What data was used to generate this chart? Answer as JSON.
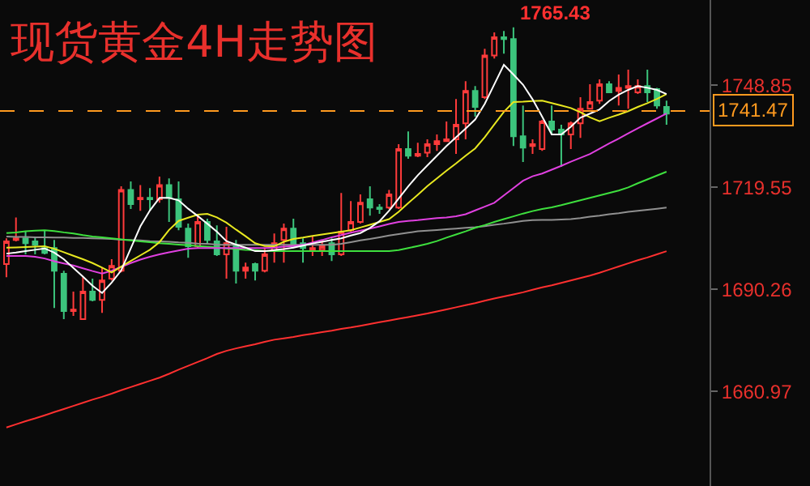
{
  "chart_data": {
    "type": "candlestick",
    "title": "现货黄金4H走势图",
    "categories": [
      null,
      null,
      null,
      null,
      null,
      null,
      null,
      null,
      null,
      null,
      null,
      null,
      null,
      null,
      null,
      null,
      null,
      null,
      null,
      null,
      null,
      null,
      null,
      null,
      null,
      null,
      null,
      null,
      null,
      null,
      null,
      null,
      null,
      null,
      null,
      null,
      null,
      null,
      null,
      null,
      null,
      null,
      null,
      null,
      null,
      null,
      null,
      null,
      null,
      null,
      null,
      null,
      null,
      null,
      null,
      null,
      null,
      null,
      null,
      null,
      null,
      null,
      null,
      null,
      null,
      null,
      null,
      null,
      null,
      null
    ],
    "ohlc": [
      [
        1697.5,
        1704.9,
        1693.7,
        1704.0
      ],
      [
        1704.4,
        1710.9,
        1704.0,
        1704.9
      ],
      [
        1704.9,
        1706.8,
        1700.3,
        1703.5
      ],
      [
        1704.0,
        1705.4,
        1700.3,
        1703.0
      ],
      [
        1702.1,
        1707.2,
        1700.3,
        1700.7
      ],
      [
        1702.1,
        1704.4,
        1684.9,
        1695.6
      ],
      [
        1694.7,
        1695.6,
        1681.7,
        1684.0
      ],
      [
        1684.0,
        1689.6,
        1682.6,
        1684.4
      ],
      [
        1681.7,
        1693.7,
        1681.7,
        1689.6
      ],
      [
        1689.6,
        1693.3,
        1686.8,
        1687.2
      ],
      [
        1687.2,
        1696.5,
        1683.5,
        1692.8
      ],
      [
        1693.3,
        1698.9,
        1692.8,
        1697.0
      ],
      [
        1695.6,
        1719.8,
        1695.1,
        1718.8
      ],
      [
        1718.8,
        1721.2,
        1713.3,
        1714.7
      ],
      [
        1716.1,
        1720.2,
        1712.8,
        1716.5
      ],
      [
        1716.5,
        1719.3,
        1712.8,
        1716.1
      ],
      [
        1716.1,
        1722.6,
        1715.1,
        1720.2
      ],
      [
        1720.2,
        1722.1,
        1709.6,
        1716.5
      ],
      [
        1716.1,
        1721.2,
        1707.2,
        1708.2
      ],
      [
        1707.7,
        1709.1,
        1699.3,
        1702.6
      ],
      [
        1702.6,
        1711.4,
        1702.1,
        1709.6
      ],
      [
        1709.6,
        1710.5,
        1703.5,
        1704.4
      ],
      [
        1704.0,
        1708.6,
        1699.8,
        1700.3
      ],
      [
        1700.3,
        1708.2,
        1693.3,
        1703.5
      ],
      [
        1703.0,
        1704.4,
        1691.9,
        1695.6
      ],
      [
        1695.6,
        1697.9,
        1693.3,
        1696.5
      ],
      [
        1697.5,
        1697.9,
        1692.8,
        1695.6
      ],
      [
        1695.6,
        1702.1,
        1695.1,
        1700.3
      ],
      [
        1701.2,
        1706.3,
        1697.9,
        1703.5
      ],
      [
        1704.4,
        1709.1,
        1697.9,
        1707.7
      ],
      [
        1707.7,
        1710.5,
        1702.1,
        1702.6
      ],
      [
        1703.5,
        1704.9,
        1697.9,
        1702.1
      ],
      [
        1701.2,
        1705.4,
        1699.8,
        1702.1
      ],
      [
        1701.6,
        1704.4,
        1699.8,
        1702.6
      ],
      [
        1703.5,
        1704.9,
        1698.4,
        1700.3
      ],
      [
        1700.3,
        1717.9,
        1699.8,
        1706.8
      ],
      [
        1707.2,
        1715.6,
        1706.8,
        1709.6
      ],
      [
        1709.6,
        1717.5,
        1709.1,
        1715.1
      ],
      [
        1716.1,
        1719.8,
        1711.4,
        1713.7
      ],
      [
        1713.7,
        1714.7,
        1711.9,
        1713.3
      ],
      [
        1713.7,
        1718.8,
        1713.3,
        1717.5
      ],
      [
        1713.7,
        1731.9,
        1713.3,
        1730.5
      ],
      [
        1730.5,
        1735.6,
        1727.7,
        1728.6
      ],
      [
        1728.6,
        1732.3,
        1728.2,
        1729.1
      ],
      [
        1729.5,
        1733.3,
        1728.2,
        1731.9
      ],
      [
        1731.9,
        1734.7,
        1730.0,
        1732.8
      ],
      [
        1732.8,
        1738.4,
        1732.8,
        1733.3
      ],
      [
        1733.3,
        1744.9,
        1729.1,
        1737.5
      ],
      [
        1737.9,
        1750.0,
        1733.3,
        1747.2
      ],
      [
        1747.2,
        1748.6,
        1739.8,
        1742.6
      ],
      [
        1745.4,
        1759.3,
        1744.9,
        1757.4
      ],
      [
        1757.4,
        1764.0,
        1756.5,
        1762.6
      ],
      [
        1762.6,
        1764.4,
        1757.9,
        1762.1
      ],
      [
        1762.1,
        1765.43,
        1731.4,
        1734.2
      ],
      [
        1734.2,
        1743.0,
        1726.8,
        1730.9
      ],
      [
        1731.4,
        1733.3,
        1729.1,
        1731.9
      ],
      [
        1730.5,
        1738.9,
        1730.0,
        1738.4
      ],
      [
        1738.4,
        1743.0,
        1734.7,
        1736.1
      ],
      [
        1736.1,
        1737.5,
        1725.4,
        1734.7
      ],
      [
        1734.7,
        1738.4,
        1730.5,
        1737.9
      ],
      [
        1737.9,
        1745.4,
        1733.7,
        1742.1
      ],
      [
        1742.1,
        1749.1,
        1742.1,
        1744.0
      ],
      [
        1744.4,
        1750.5,
        1743.5,
        1749.1
      ],
      [
        1749.1,
        1750.0,
        1746.8,
        1746.8
      ],
      [
        1747.2,
        1751.9,
        1743.0,
        1748.1
      ],
      [
        1748.1,
        1753.3,
        1742.1,
        1748.6
      ],
      [
        1746.8,
        1750.5,
        1746.3,
        1748.6
      ],
      [
        1748.6,
        1753.3,
        1744.0,
        1746.8
      ],
      [
        1747.7,
        1748.1,
        1742.1,
        1743.0
      ],
      [
        1742.6,
        1744.4,
        1737.5,
        1740.7
      ]
    ],
    "colors": [
      "#ff3b3b",
      "#ff3b3b",
      "#3cc47c",
      "#3cc47c",
      "#3cc47c",
      "#3cc47c",
      "#3cc47c",
      "#ff3b3b",
      "#ff3b3b",
      "#3cc47c",
      "#ff3b3b",
      "#ff3b3b",
      "#ff3b3b",
      "#3cc47c",
      "#ff3b3b",
      "#3cc47c",
      "#ff3b3b",
      "#3cc47c",
      "#3cc47c",
      "#3cc47c",
      "#ff3b3b",
      "#3cc47c",
      "#3cc47c",
      "#ff3b3b",
      "#3cc47c",
      "#ff3b3b",
      "#3cc47c",
      "#ff3b3b",
      "#ff3b3b",
      "#ff3b3b",
      "#3cc47c",
      "#3cc47c",
      "#ff3b3b",
      "#ff3b3b",
      "#3cc47c",
      "#ff3b3b",
      "#ff3b3b",
      "#ff3b3b",
      "#3cc47c",
      "#3cc47c",
      "#ff3b3b",
      "#ff3b3b",
      "#3cc47c",
      "#ff3b3b",
      "#ff3b3b",
      "#ff3b3b",
      "#ff3b3b",
      "#ff3b3b",
      "#ff3b3b",
      "#3cc47c",
      "#ff3b3b",
      "#ff3b3b",
      "#3cc47c",
      "#3cc47c",
      "#3cc47c",
      "#ff3b3b",
      "#ff3b3b",
      "#3cc47c",
      "#3cc47c",
      "#ff3b3b",
      "#ff3b3b",
      "#ff3b3b",
      "#ff3b3b",
      "#3cc47c",
      "#ff3b3b",
      "#ff3b3b",
      "#ff3b3b",
      "#3cc47c",
      "#3cc47c",
      "#3cc47c"
    ],
    "series": [
      {
        "type": "line",
        "color": "#ff3030",
        "values": [
          1650.6,
          1651.5,
          1652.4,
          1653.2,
          1654.1,
          1655.0,
          1655.9,
          1656.8,
          1657.7,
          1658.6,
          1659.4,
          1660.3,
          1661.3,
          1662.2,
          1663.1,
          1664.0,
          1664.9,
          1666.0,
          1667.2,
          1668.3,
          1669.4,
          1670.5,
          1671.7,
          1672.6,
          1673.3,
          1673.9,
          1674.5,
          1675.2,
          1675.8,
          1676.2,
          1676.6,
          1677.1,
          1677.5,
          1678.0,
          1678.4,
          1678.9,
          1679.3,
          1679.8,
          1680.3,
          1680.8,
          1681.3,
          1681.8,
          1682.3,
          1682.8,
          1683.3,
          1683.9,
          1684.5,
          1685.1,
          1685.7,
          1686.3,
          1687.0,
          1687.6,
          1688.2,
          1688.8,
          1689.4,
          1690.1,
          1690.8,
          1691.4,
          1692.1,
          1692.8,
          1693.5,
          1694.2,
          1695.0,
          1695.9,
          1696.8,
          1697.7,
          1698.6,
          1699.4,
          1700.3,
          1701.2
        ]
      },
      {
        "type": "line",
        "color": "#909090",
        "values": [
          1705.4,
          1705.3,
          1705.3,
          1705.2,
          1705.2,
          1705.1,
          1705.1,
          1705.0,
          1705.0,
          1704.9,
          1704.8,
          1704.7,
          1704.5,
          1704.4,
          1704.3,
          1704.1,
          1704.0,
          1703.9,
          1703.7,
          1703.6,
          1703.4,
          1703.3,
          1703.1,
          1703.0,
          1703.0,
          1703.0,
          1703.0,
          1703.0,
          1703.0,
          1703.0,
          1703.0,
          1703.0,
          1703.0,
          1703.0,
          1703.0,
          1703.3,
          1703.8,
          1704.3,
          1704.7,
          1705.2,
          1705.7,
          1706.1,
          1706.5,
          1706.9,
          1707.1,
          1707.3,
          1707.5,
          1707.7,
          1707.9,
          1708.1,
          1708.4,
          1708.8,
          1709.1,
          1709.5,
          1709.9,
          1710.1,
          1710.2,
          1710.2,
          1710.3,
          1710.4,
          1710.7,
          1711.1,
          1711.4,
          1711.8,
          1712.1,
          1712.5,
          1712.8,
          1713.1,
          1713.4,
          1713.7
        ]
      },
      {
        "type": "line",
        "color": "#3ee03e",
        "values": [
          1706.4,
          1706.6,
          1706.9,
          1707.1,
          1707.2,
          1707.0,
          1706.6,
          1706.3,
          1705.8,
          1705.4,
          1705.2,
          1704.9,
          1704.6,
          1704.3,
          1704.0,
          1703.8,
          1703.5,
          1703.3,
          1703.1,
          1702.9,
          1702.7,
          1702.5,
          1702.3,
          1702.0,
          1701.8,
          1701.6,
          1701.5,
          1701.3,
          1701.2,
          1701.2,
          1701.2,
          1701.2,
          1701.2,
          1701.2,
          1701.2,
          1701.2,
          1701.2,
          1701.2,
          1701.2,
          1701.2,
          1701.2,
          1701.5,
          1702.1,
          1702.7,
          1703.3,
          1704.1,
          1705.1,
          1706.0,
          1706.9,
          1707.9,
          1708.7,
          1709.6,
          1710.4,
          1711.2,
          1712.0,
          1712.7,
          1713.3,
          1713.8,
          1714.4,
          1715.1,
          1715.8,
          1716.5,
          1717.2,
          1717.9,
          1718.6,
          1719.5,
          1720.7,
          1721.8,
          1722.9,
          1724.0
        ]
      },
      {
        "type": "line",
        "color": "#e040e0",
        "values": [
          1699.8,
          1699.8,
          1699.8,
          1699.6,
          1699.1,
          1698.3,
          1697.7,
          1697.1,
          1696.3,
          1695.5,
          1694.8,
          1695.6,
          1696.7,
          1697.8,
          1698.8,
          1699.6,
          1700.3,
          1700.9,
          1701.4,
          1701.9,
          1702.1,
          1702.1,
          1702.1,
          1702.1,
          1702.1,
          1702.1,
          1702.1,
          1702.1,
          1702.2,
          1702.5,
          1702.7,
          1703.0,
          1703.7,
          1704.4,
          1705.2,
          1705.8,
          1706.5,
          1707.1,
          1707.7,
          1708.3,
          1709.0,
          1709.6,
          1709.9,
          1710.1,
          1710.4,
          1710.7,
          1710.9,
          1711.2,
          1711.8,
          1712.9,
          1714.0,
          1715.1,
          1717.2,
          1719.3,
          1721.4,
          1722.7,
          1723.5,
          1724.6,
          1725.7,
          1726.9,
          1728.0,
          1729.1,
          1730.6,
          1732.1,
          1733.5,
          1735.0,
          1736.5,
          1737.9,
          1739.3,
          1740.7
        ]
      },
      {
        "type": "line",
        "color": "#e8e820",
        "values": [
          1702.2,
          1702.3,
          1702.4,
          1702.5,
          1702.6,
          1701.9,
          1700.9,
          1699.9,
          1698.9,
          1697.8,
          1696.5,
          1695.1,
          1696.8,
          1698.4,
          1700.0,
          1701.6,
          1703.8,
          1707.3,
          1709.9,
          1710.8,
          1711.7,
          1711.9,
          1710.9,
          1709.4,
          1707.4,
          1705.5,
          1703.5,
          1702.7,
          1702.6,
          1703.9,
          1704.7,
          1705.1,
          1705.6,
          1706.0,
          1706.4,
          1706.8,
          1707.2,
          1708.0,
          1708.8,
          1709.6,
          1710.4,
          1712.5,
          1715.0,
          1717.4,
          1719.9,
          1722.1,
          1724.3,
          1726.4,
          1728.6,
          1730.7,
          1733.9,
          1737.6,
          1741.2,
          1744.0,
          1744.1,
          1744.3,
          1744.4,
          1743.7,
          1743.0,
          1742.3,
          1741.1,
          1739.6,
          1738.5,
          1739.5,
          1740.4,
          1741.4,
          1742.6,
          1743.7,
          1744.9,
          1746.3
        ]
      },
      {
        "type": "line",
        "color": "#ffffff",
        "values": [
          1700.5,
          1700.8,
          1701.2,
          1701.6,
          1702.0,
          1700.8,
          1698.9,
          1696.4,
          1693.9,
          1691.3,
          1689.2,
          1692.2,
          1695.7,
          1702.0,
          1708.3,
          1712.9,
          1716.5,
          1716.5,
          1715.8,
          1713.4,
          1711.3,
          1709.1,
          1706.8,
          1704.1,
          1703.1,
          1702.2,
          1701.2,
          1701.2,
          1701.5,
          1701.8,
          1702.2,
          1702.8,
          1703.4,
          1703.9,
          1704.4,
          1704.9,
          1705.7,
          1706.4,
          1707.9,
          1709.8,
          1712.8,
          1716.3,
          1719.8,
          1723.0,
          1725.8,
          1728.6,
          1731.4,
          1733.9,
          1736.4,
          1739.0,
          1743.5,
          1749.1,
          1754.7,
          1751.9,
          1749.0,
          1744.8,
          1739.8,
          1734.7,
          1734.7,
          1736.9,
          1739.5,
          1740.7,
          1741.9,
          1744.3,
          1746.1,
          1747.5,
          1748.6,
          1748.1,
          1747.5,
          1746.3
        ]
      }
    ],
    "ylim": [
      1633.8,
      1773.3
    ],
    "yticks": [
      1660.97,
      1690.26,
      1719.55,
      1748.85
    ],
    "ref_lines": [
      {
        "axis": "y",
        "value": 1741.47,
        "label": "1741.47",
        "color": "#ff9a1f",
        "line_style": "dashed"
      }
    ],
    "annotations": [
      "1765.43"
    ],
    "tick_labels": "y"
  }
}
